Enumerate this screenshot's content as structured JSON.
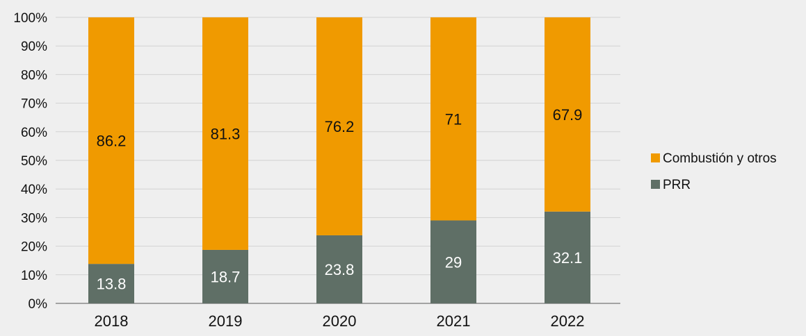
{
  "chart_data": {
    "type": "bar",
    "stacked": true,
    "percent": true,
    "categories": [
      "2018",
      "2019",
      "2020",
      "2021",
      "2022"
    ],
    "series": [
      {
        "name": "PRR",
        "color": "#5f6f66",
        "label_color": "#ffffff",
        "values": [
          13.8,
          18.7,
          23.8,
          29,
          32.1
        ]
      },
      {
        "name": "Combustión y otros",
        "color": "#f09a00",
        "label_color": "#111111",
        "values": [
          86.2,
          81.3,
          76.2,
          71,
          67.9
        ]
      }
    ],
    "y_ticks": [
      "0%",
      "10%",
      "20%",
      "30%",
      "40%",
      "50%",
      "60%",
      "70%",
      "80%",
      "90%",
      "100%"
    ],
    "ylim": [
      0,
      100
    ],
    "grid": true,
    "legend_position": "right",
    "legend_order": [
      "Combustión y otros",
      "PRR"
    ]
  }
}
